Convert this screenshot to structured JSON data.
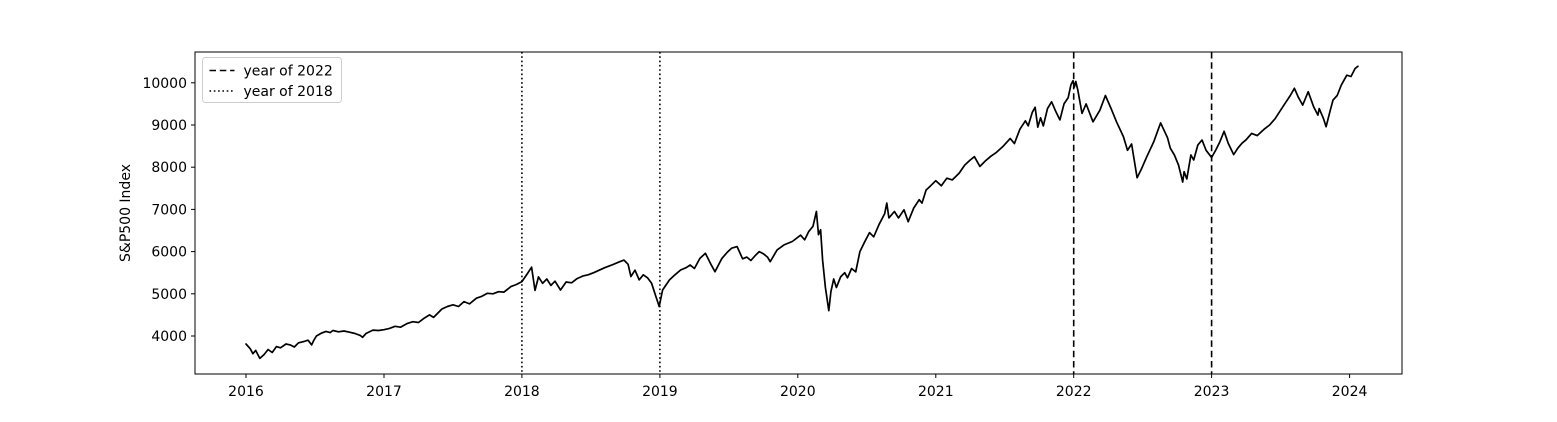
{
  "figure": {
    "background": "#ffffff",
    "accent_color": "#000000"
  },
  "chart_data": {
    "type": "line",
    "title": "",
    "xlabel": "",
    "ylabel": "S&P500 Index",
    "xlim": [
      2015.63,
      2024.38
    ],
    "ylim": [
      3100,
      10730
    ],
    "xticks": [
      2016,
      2017,
      2018,
      2019,
      2020,
      2021,
      2022,
      2023,
      2024
    ],
    "yticks": [
      4000,
      5000,
      6000,
      7000,
      8000,
      9000,
      10000
    ],
    "grid": false,
    "legend_position": "upper-left",
    "legend": [
      {
        "label": "year of 2022",
        "style": "dashed"
      },
      {
        "label": "year of 2018",
        "style": "dotted"
      }
    ],
    "vlines": [
      {
        "x": 2018,
        "style": "dotted",
        "label": "year of 2018",
        "color": "#000000"
      },
      {
        "x": 2019,
        "style": "dotted",
        "label": "year of 2018",
        "color": "#000000"
      },
      {
        "x": 2022,
        "style": "dashed",
        "label": "year of 2022",
        "color": "#000000"
      },
      {
        "x": 2023,
        "style": "dashed",
        "label": "year of 2022",
        "color": "#000000"
      }
    ],
    "series": [
      {
        "name": "S&P500 Index",
        "color": "#000000",
        "x": [
          2016.0,
          2016.03,
          2016.05,
          2016.07,
          2016.1,
          2016.13,
          2016.16,
          2016.19,
          2016.22,
          2016.25,
          2016.29,
          2016.32,
          2016.35,
          2016.38,
          2016.42,
          2016.45,
          2016.475,
          2016.49,
          2016.51,
          2016.55,
          2016.58,
          2016.61,
          2016.63,
          2016.67,
          2016.71,
          2016.75,
          2016.79,
          2016.83,
          2016.845,
          2016.87,
          2016.92,
          2016.96,
          2017.0,
          2017.04,
          2017.08,
          2017.12,
          2017.17,
          2017.21,
          2017.25,
          2017.29,
          2017.33,
          2017.36,
          2017.42,
          2017.46,
          2017.5,
          2017.54,
          2017.58,
          2017.62,
          2017.67,
          2017.71,
          2017.75,
          2017.79,
          2017.83,
          2017.87,
          2017.92,
          2017.96,
          2018.0,
          2018.04,
          2018.07,
          2018.095,
          2018.12,
          2018.15,
          2018.18,
          2018.21,
          2018.24,
          2018.28,
          2018.32,
          2018.36,
          2018.4,
          2018.44,
          2018.48,
          2018.52,
          2018.56,
          2018.6,
          2018.65,
          2018.7,
          2018.74,
          2018.77,
          2018.79,
          2018.82,
          2018.85,
          2018.88,
          2018.91,
          2018.94,
          2018.97,
          2018.995,
          2019.02,
          2019.07,
          2019.11,
          2019.15,
          2019.19,
          2019.22,
          2019.25,
          2019.29,
          2019.33,
          2019.37,
          2019.4,
          2019.45,
          2019.49,
          2019.52,
          2019.56,
          2019.6,
          2019.63,
          2019.66,
          2019.69,
          2019.72,
          2019.75,
          2019.78,
          2019.8,
          2019.85,
          2019.9,
          2019.96,
          2020.02,
          2020.05,
          2020.08,
          2020.11,
          2020.135,
          2020.15,
          2020.165,
          2020.18,
          2020.2,
          2020.225,
          2020.24,
          2020.26,
          2020.28,
          2020.31,
          2020.34,
          2020.36,
          2020.39,
          2020.42,
          2020.45,
          2020.48,
          2020.52,
          2020.55,
          2020.59,
          2020.63,
          2020.645,
          2020.66,
          2020.7,
          2020.73,
          2020.77,
          2020.8,
          2020.84,
          2020.88,
          2020.9,
          2020.93,
          2020.96,
          2021.0,
          2021.04,
          2021.08,
          2021.12,
          2021.17,
          2021.21,
          2021.25,
          2021.28,
          2021.32,
          2021.36,
          2021.4,
          2021.44,
          2021.49,
          2021.54,
          2021.57,
          2021.61,
          2021.65,
          2021.67,
          2021.7,
          2021.72,
          2021.74,
          2021.76,
          2021.78,
          2021.81,
          2021.84,
          2021.87,
          2021.9,
          2021.93,
          2021.96,
          2021.98,
          2021.995,
          2022.005,
          2022.015,
          2022.03,
          2022.06,
          2022.09,
          2022.14,
          2022.19,
          2022.23,
          2022.27,
          2022.31,
          2022.36,
          2022.39,
          2022.42,
          2022.46,
          2022.49,
          2022.53,
          2022.58,
          2022.63,
          2022.68,
          2022.7,
          2022.73,
          2022.76,
          2022.79,
          2022.8,
          2022.82,
          2022.85,
          2022.87,
          2022.9,
          2022.93,
          2022.96,
          2023.0,
          2023.03,
          2023.06,
          2023.09,
          2023.12,
          2023.16,
          2023.19,
          2023.22,
          2023.25,
          2023.29,
          2023.33,
          2023.38,
          2023.42,
          2023.46,
          2023.5,
          2023.54,
          2023.57,
          2023.6,
          2023.63,
          2023.66,
          2023.7,
          2023.74,
          2023.77,
          2023.78,
          2023.81,
          2023.83,
          2023.86,
          2023.88,
          2023.91,
          2023.94,
          2023.98,
          2024.01,
          2024.04,
          2024.06
        ],
        "y": [
          3810,
          3700,
          3580,
          3660,
          3470,
          3560,
          3680,
          3610,
          3750,
          3720,
          3810,
          3790,
          3740,
          3840,
          3870,
          3900,
          3790,
          3890,
          4000,
          4075,
          4110,
          4080,
          4130,
          4100,
          4120,
          4090,
          4060,
          4010,
          3970,
          4060,
          4140,
          4130,
          4150,
          4180,
          4230,
          4210,
          4300,
          4340,
          4320,
          4420,
          4500,
          4440,
          4640,
          4700,
          4740,
          4700,
          4815,
          4760,
          4895,
          4940,
          5013,
          5000,
          5050,
          5040,
          5170,
          5220,
          5290,
          5480,
          5630,
          5080,
          5400,
          5250,
          5350,
          5200,
          5300,
          5090,
          5280,
          5260,
          5360,
          5420,
          5450,
          5500,
          5560,
          5620,
          5680,
          5750,
          5800,
          5700,
          5410,
          5560,
          5330,
          5450,
          5380,
          5250,
          4950,
          4700,
          5090,
          5330,
          5450,
          5565,
          5620,
          5683,
          5600,
          5840,
          5960,
          5700,
          5525,
          5840,
          5990,
          6080,
          6120,
          5830,
          5870,
          5790,
          5900,
          6000,
          5950,
          5870,
          5762,
          6040,
          6160,
          6240,
          6390,
          6280,
          6480,
          6600,
          6950,
          6400,
          6520,
          5800,
          5150,
          4600,
          5050,
          5350,
          5150,
          5400,
          5500,
          5380,
          5600,
          5520,
          6000,
          6200,
          6450,
          6350,
          6650,
          6900,
          7150,
          6800,
          6950,
          6800,
          6990,
          6710,
          7030,
          7230,
          7150,
          7460,
          7550,
          7680,
          7560,
          7740,
          7700,
          7860,
          8050,
          8170,
          8250,
          8020,
          8150,
          8260,
          8350,
          8500,
          8680,
          8560,
          8900,
          9100,
          8980,
          9300,
          9420,
          8950,
          9170,
          8980,
          9390,
          9550,
          9320,
          9120,
          9500,
          9650,
          9950,
          10050,
          9900,
          10030,
          9830,
          9275,
          9500,
          9075,
          9350,
          9700,
          9400,
          9075,
          8725,
          8400,
          8550,
          7750,
          7950,
          8250,
          8600,
          9050,
          8700,
          8450,
          8290,
          8053,
          7650,
          7894,
          7720,
          8290,
          8171,
          8525,
          8644,
          8400,
          8230,
          8407,
          8605,
          8850,
          8568,
          8300,
          8450,
          8570,
          8650,
          8800,
          8750,
          8900,
          9000,
          9150,
          9350,
          9550,
          9700,
          9870,
          9650,
          9472,
          9790,
          9430,
          9235,
          9390,
          9157,
          8960,
          9350,
          9590,
          9700,
          9945,
          10180,
          10150,
          10340,
          10390
        ]
      }
    ]
  }
}
